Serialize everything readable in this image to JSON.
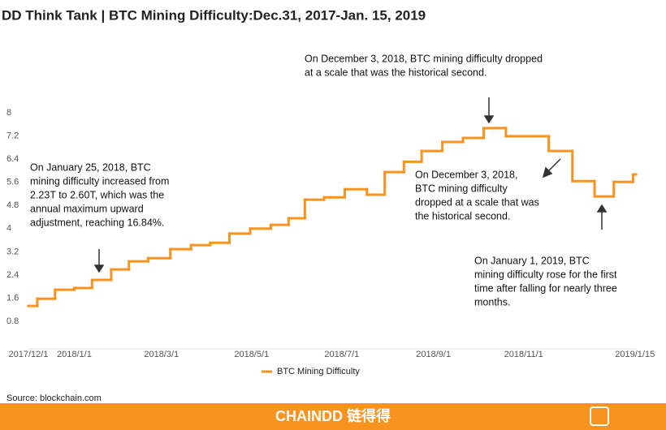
{
  "chart_data": {
    "type": "step",
    "title": "DD Think Tank | BTC Mining Difficulty:Dec.31, 2017-Jan. 15, 2019",
    "x": [
      "2017/12/1",
      "2017/12/7",
      "2017/12/19",
      "2018/1/1",
      "2018/1/13",
      "2018/1/26",
      "2018/2/7",
      "2018/2/20",
      "2018/3/7",
      "2018/3/21",
      "2018/4/3",
      "2018/4/16",
      "2018/4/30",
      "2018/5/14",
      "2018/5/26",
      "2018/6/6",
      "2018/6/19",
      "2018/7/3",
      "2018/7/18",
      "2018/7/30",
      "2018/8/12",
      "2018/8/24",
      "2018/9/7",
      "2018/9/21",
      "2018/10/5",
      "2018/10/20",
      "2018/11/18",
      "2018/12/4",
      "2018/12/19",
      "2019/1/1",
      "2019/1/14"
    ],
    "series": [
      {
        "name": "BTC Mining Difficulty",
        "color": "#f7931e",
        "values": [
          1.33,
          1.58,
          1.89,
          1.95,
          2.23,
          2.59,
          2.87,
          2.98,
          3.29,
          3.43,
          3.51,
          3.83,
          4.0,
          4.13,
          4.36,
          5.0,
          5.08,
          5.36,
          5.17,
          5.95,
          6.31,
          6.68,
          6.99,
          7.13,
          7.47,
          7.19,
          6.68,
          5.64,
          5.11,
          5.61,
          5.87
        ]
      }
    ],
    "xlim": [
      "2017/12/1",
      "2019/1/16"
    ],
    "xticks": [
      "2017/12/1",
      "2018/1/1",
      "2018/3/1",
      "2018/5/1",
      "2018/7/1",
      "2018/9/1",
      "2018/11/1",
      "2019/1/15"
    ],
    "ylim": [
      0,
      8.4
    ],
    "yticks": [
      0.8,
      1.6,
      2.4,
      3.2,
      4,
      4.8,
      5.6,
      6.4,
      7.2,
      8
    ],
    "grid": false,
    "legend": "bottom",
    "annotations": [
      {
        "lines": [
          "On December 3, 2018, BTC mining difficulty dropped",
          "at a scale that was the historical second."
        ]
      },
      {
        "lines": [
          "On January 25, 2018, BTC",
          "mining difficulty increased from",
          "2.23T to 2.60T, which was the",
          "annual maximum upward",
          "adjustment, reaching 16.84%."
        ]
      },
      {
        "lines": [
          "On December 3, 2018,",
          "BTC mining difficulty",
          "dropped at a scale that was",
          "the historical second."
        ]
      },
      {
        "lines": [
          "On January 1, 2019, BTC",
          "mining difficulty rose for the first",
          "time after falling for nearly three",
          "months."
        ]
      }
    ],
    "source": "Source: blockchain.com",
    "brand": "CHAINDD 链得得"
  }
}
